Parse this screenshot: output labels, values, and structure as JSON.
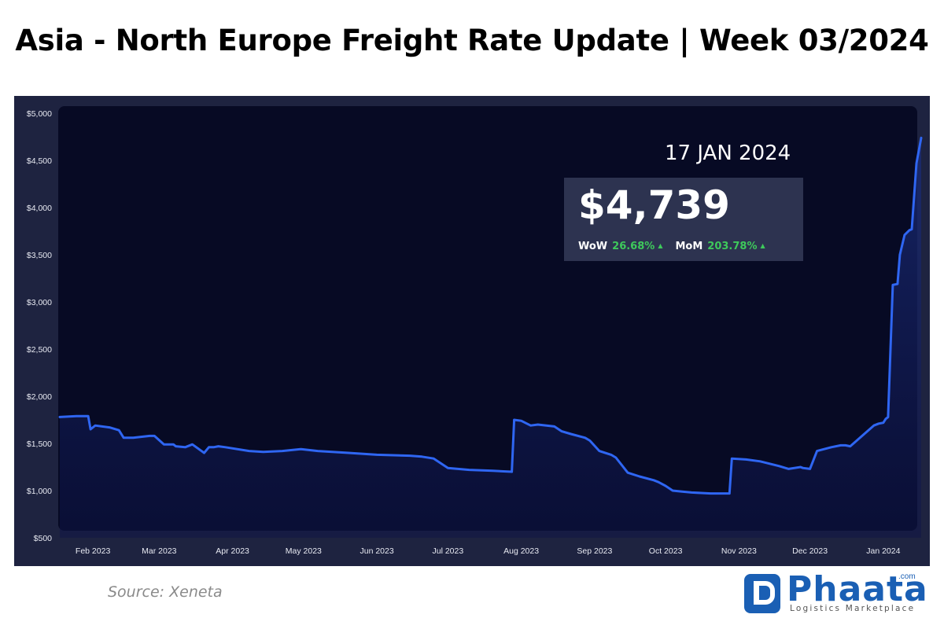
{
  "title": "Asia - North Europe Freight Rate Update | Week 03/2024",
  "source": "Source: Xeneta",
  "logo": {
    "name": "Phaata",
    "tld": ".com",
    "tagline": "Logistics Marketplace"
  },
  "colors": {
    "frame": "#1e2340",
    "plot": "#070a24",
    "line": "#2f66f2",
    "positive": "#3ec95b"
  },
  "kpi": {
    "date": "17 JAN 2024",
    "value": "$4,739",
    "wow_label": "WoW",
    "wow_value": "26.68%",
    "mom_label": "MoM",
    "mom_value": "203.78%"
  },
  "chart_data": {
    "type": "area",
    "title": "",
    "xlabel": "",
    "ylabel": "",
    "ylim": [
      500,
      5000
    ],
    "xlim": [
      "2023-01-18",
      "2024-01-17"
    ],
    "y_ticks": [
      500,
      1000,
      1500,
      2000,
      2500,
      3000,
      3500,
      4000,
      4500,
      5000
    ],
    "y_tick_labels": [
      "$500",
      "$1,000",
      "$1,500",
      "$2,000",
      "$2,500",
      "$3,000",
      "$3,500",
      "$4,000",
      "$4,500",
      "$5,000"
    ],
    "x_ticks": [
      "2023-02-01",
      "2023-03-01",
      "2023-04-01",
      "2023-05-01",
      "2023-06-01",
      "2023-07-01",
      "2023-08-01",
      "2023-09-01",
      "2023-10-01",
      "2023-11-01",
      "2023-12-01",
      "2024-01-01"
    ],
    "x_tick_labels": [
      "Feb 2023",
      "Mar 2023",
      "Apr 2023",
      "May 2023",
      "Jun 2023",
      "Jul 2023",
      "Aug 2023",
      "Sep 2023",
      "Oct 2023",
      "Nov 2023",
      "Dec 2023",
      "Jan 2024"
    ],
    "grid": false,
    "legend": "none",
    "series": [
      {
        "x": [
          "2023-01-18",
          "2023-01-25",
          "2023-01-30",
          "2023-01-31",
          "2023-02-02",
          "2023-02-08",
          "2023-02-12",
          "2023-02-14",
          "2023-02-18",
          "2023-02-25",
          "2023-02-27",
          "2023-03-03",
          "2023-03-07",
          "2023-03-08",
          "2023-03-12",
          "2023-03-15",
          "2023-03-20",
          "2023-03-22",
          "2023-03-24",
          "2023-03-26",
          "2023-03-29",
          "2023-04-08",
          "2023-04-14",
          "2023-04-22",
          "2023-04-30",
          "2023-05-07",
          "2023-05-20",
          "2023-06-01",
          "2023-06-15",
          "2023-06-20",
          "2023-06-25",
          "2023-07-01",
          "2023-07-10",
          "2023-07-20",
          "2023-07-28",
          "2023-07-29",
          "2023-08-01",
          "2023-08-05",
          "2023-08-08",
          "2023-08-15",
          "2023-08-18",
          "2023-08-22",
          "2023-08-28",
          "2023-08-30",
          "2023-09-03",
          "2023-09-08",
          "2023-09-10",
          "2023-09-15",
          "2023-09-20",
          "2023-09-26",
          "2023-09-28",
          "2023-10-01",
          "2023-10-04",
          "2023-10-08",
          "2023-10-12",
          "2023-10-20",
          "2023-10-28",
          "2023-10-29",
          "2023-11-04",
          "2023-11-10",
          "2023-11-18",
          "2023-11-22",
          "2023-11-27",
          "2023-11-28",
          "2023-12-01",
          "2023-12-04",
          "2023-12-10",
          "2023-12-14",
          "2023-12-16",
          "2023-12-18",
          "2023-12-28",
          "2023-12-30",
          "2024-01-01",
          "2024-01-02",
          "2024-01-03",
          "2024-01-05",
          "2024-01-07",
          "2024-01-08",
          "2024-01-10",
          "2024-01-12",
          "2024-01-13",
          "2024-01-15",
          "2024-01-17"
        ],
        "values": [
          1780,
          1790,
          1790,
          1650,
          1690,
          1670,
          1640,
          1560,
          1560,
          1580,
          1580,
          1490,
          1490,
          1470,
          1460,
          1490,
          1400,
          1460,
          1460,
          1470,
          1460,
          1420,
          1410,
          1420,
          1440,
          1420,
          1400,
          1380,
          1370,
          1360,
          1340,
          1240,
          1220,
          1210,
          1200,
          1750,
          1740,
          1690,
          1700,
          1680,
          1630,
          1600,
          1560,
          1530,
          1420,
          1380,
          1350,
          1190,
          1150,
          1110,
          1090,
          1050,
          1000,
          990,
          980,
          970,
          970,
          1340,
          1330,
          1310,
          1260,
          1230,
          1250,
          1240,
          1230,
          1420,
          1460,
          1480,
          1480,
          1470,
          1690,
          1710,
          1720,
          1760,
          1780,
          3180,
          3190,
          3500,
          3710,
          3760,
          3770,
          4470,
          4739
        ]
      }
    ]
  }
}
